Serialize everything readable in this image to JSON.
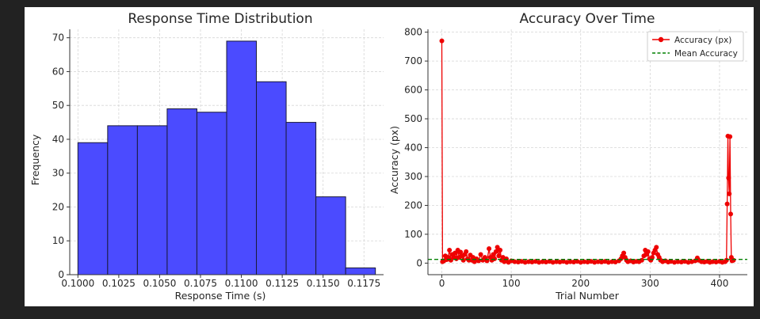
{
  "chart_data": [
    {
      "type": "bar",
      "title": "Response Time Distribution",
      "xlabel": "Response Time (s)",
      "ylabel": "Frequency",
      "bin_edges": [
        0.1,
        0.10182,
        0.10364,
        0.10546,
        0.10728,
        0.1091,
        0.11092,
        0.11274,
        0.11456,
        0.11638,
        0.1182
      ],
      "values": [
        39,
        44,
        44,
        49,
        48,
        69,
        57,
        45,
        23,
        2
      ],
      "xlim": [
        0.0995,
        0.1187
      ],
      "ylim": [
        0,
        72.5
      ],
      "xticks": [
        0.1,
        0.1025,
        0.105,
        0.1075,
        0.11,
        0.1125,
        0.115,
        0.1175
      ],
      "xtick_labels": [
        "0.1000",
        "0.1025",
        "0.1050",
        "0.1075",
        "0.1100",
        "0.1125",
        "0.1150",
        "0.1175"
      ],
      "yticks": [
        0,
        10,
        20,
        30,
        40,
        50,
        60,
        70
      ],
      "ytick_labels": [
        "0",
        "10",
        "20",
        "30",
        "40",
        "50",
        "60",
        "70"
      ],
      "grid": true,
      "colors": {
        "bar": "#4b4bff",
        "edge": "#1a1a3a"
      }
    },
    {
      "type": "line",
      "title": "Accuracy Over Time",
      "xlabel": "Trial Number",
      "ylabel": "Accuracy (px)",
      "xlim": [
        -20,
        440
      ],
      "ylim": [
        -40,
        810
      ],
      "xticks": [
        0,
        100,
        200,
        300,
        400
      ],
      "xtick_labels": [
        "0",
        "100",
        "200",
        "300",
        "400"
      ],
      "yticks": [
        0,
        100,
        200,
        300,
        400,
        500,
        600,
        700,
        800
      ],
      "ytick_labels": [
        "0",
        "100",
        "200",
        "300",
        "400",
        "500",
        "600",
        "700",
        "800"
      ],
      "grid": true,
      "legend_position": "top-right",
      "series": [
        {
          "name": "Accuracy (px)",
          "color": "#ee0000",
          "style": "line-marker",
          "points": [
            [
              0,
              770
            ],
            [
              1,
              5
            ],
            [
              3,
              8
            ],
            [
              5,
              25
            ],
            [
              7,
              12
            ],
            [
              9,
              20
            ],
            [
              11,
              45
            ],
            [
              13,
              10
            ],
            [
              15,
              30
            ],
            [
              17,
              20
            ],
            [
              19,
              35
            ],
            [
              21,
              15
            ],
            [
              23,
              45
            ],
            [
              25,
              20
            ],
            [
              27,
              38
            ],
            [
              29,
              25
            ],
            [
              31,
              10
            ],
            [
              33,
              30
            ],
            [
              35,
              40
            ],
            [
              37,
              15
            ],
            [
              39,
              10
            ],
            [
              41,
              28
            ],
            [
              43,
              10
            ],
            [
              45,
              20
            ],
            [
              47,
              5
            ],
            [
              50,
              15
            ],
            [
              53,
              8
            ],
            [
              56,
              30
            ],
            [
              59,
              10
            ],
            [
              62,
              20
            ],
            [
              65,
              8
            ],
            [
              68,
              50
            ],
            [
              70,
              20
            ],
            [
              72,
              10
            ],
            [
              74,
              30
            ],
            [
              76,
              15
            ],
            [
              78,
              40
            ],
            [
              80,
              55
            ],
            [
              82,
              25
            ],
            [
              84,
              45
            ],
            [
              86,
              10
            ],
            [
              88,
              20
            ],
            [
              90,
              5
            ],
            [
              93,
              15
            ],
            [
              96,
              3
            ],
            [
              100,
              8
            ],
            [
              105,
              5
            ],
            [
              110,
              4
            ],
            [
              115,
              6
            ],
            [
              120,
              3
            ],
            [
              125,
              5
            ],
            [
              130,
              4
            ],
            [
              135,
              6
            ],
            [
              140,
              3
            ],
            [
              145,
              5
            ],
            [
              150,
              4
            ],
            [
              155,
              6
            ],
            [
              160,
              3
            ],
            [
              165,
              5
            ],
            [
              170,
              4
            ],
            [
              175,
              6
            ],
            [
              180,
              3
            ],
            [
              185,
              5
            ],
            [
              190,
              4
            ],
            [
              195,
              6
            ],
            [
              200,
              3
            ],
            [
              205,
              5
            ],
            [
              210,
              4
            ],
            [
              215,
              6
            ],
            [
              220,
              3
            ],
            [
              225,
              5
            ],
            [
              230,
              4
            ],
            [
              235,
              6
            ],
            [
              240,
              3
            ],
            [
              245,
              5
            ],
            [
              250,
              4
            ],
            [
              255,
              8
            ],
            [
              258,
              15
            ],
            [
              260,
              25
            ],
            [
              262,
              35
            ],
            [
              264,
              20
            ],
            [
              266,
              10
            ],
            [
              268,
              5
            ],
            [
              272,
              8
            ],
            [
              276,
              4
            ],
            [
              280,
              6
            ],
            [
              284,
              5
            ],
            [
              288,
              10
            ],
            [
              291,
              25
            ],
            [
              293,
              45
            ],
            [
              295,
              30
            ],
            [
              297,
              40
            ],
            [
              299,
              15
            ],
            [
              301,
              10
            ],
            [
              303,
              20
            ],
            [
              305,
              35
            ],
            [
              307,
              45
            ],
            [
              309,
              55
            ],
            [
              311,
              30
            ],
            [
              313,
              20
            ],
            [
              315,
              10
            ],
            [
              318,
              5
            ],
            [
              322,
              8
            ],
            [
              326,
              4
            ],
            [
              330,
              6
            ],
            [
              335,
              3
            ],
            [
              340,
              5
            ],
            [
              345,
              4
            ],
            [
              350,
              6
            ],
            [
              355,
              3
            ],
            [
              360,
              5
            ],
            [
              365,
              8
            ],
            [
              368,
              18
            ],
            [
              370,
              10
            ],
            [
              374,
              5
            ],
            [
              378,
              4
            ],
            [
              382,
              6
            ],
            [
              386,
              3
            ],
            [
              390,
              5
            ],
            [
              395,
              4
            ],
            [
              400,
              6
            ],
            [
              404,
              3
            ],
            [
              408,
              5
            ],
            [
              410,
              10
            ],
            [
              411,
              205
            ],
            [
              412,
              440
            ],
            [
              413,
              295
            ],
            [
              414,
              240
            ],
            [
              415,
              438
            ],
            [
              416,
              170
            ],
            [
              417,
              20
            ],
            [
              418,
              8
            ],
            [
              420,
              10
            ]
          ]
        },
        {
          "name": "Mean Accuracy",
          "color": "#008000",
          "style": "dashed",
          "value": 13
        }
      ]
    }
  ]
}
